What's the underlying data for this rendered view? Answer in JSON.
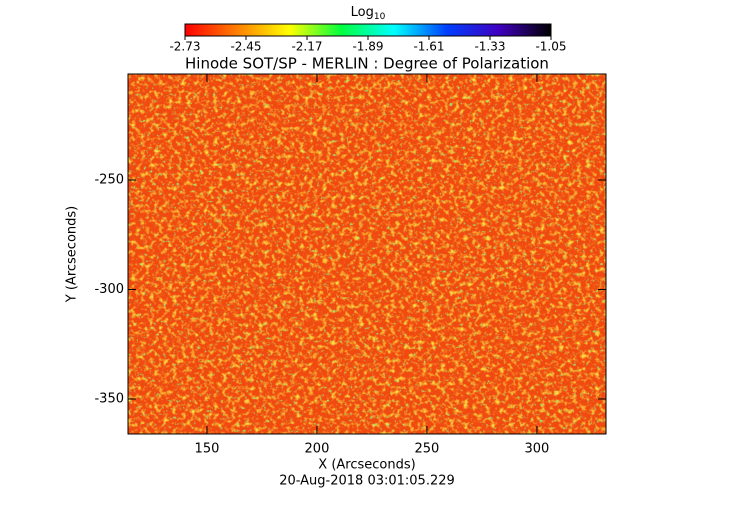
{
  "chart_data": {
    "type": "heatmap",
    "title": "Hinode SOT/SP - MERLIN : Degree of Polarization",
    "x_label": "X (Arcseconds)",
    "y_label": "Y (Arcseconds)",
    "footer": "20-Aug-2018 03:01:05.229",
    "colorbar_label": {
      "text": "Log",
      "subscript": "10"
    },
    "colormap": [
      "#ff0000",
      "#ff8000",
      "#ffff00",
      "#00ff40",
      "#00ffff",
      "#0040ff",
      "#4000c0",
      "#000000"
    ],
    "clim": [
      -2.73,
      -1.05
    ],
    "cticks": [
      -2.73,
      -2.45,
      -2.17,
      -1.89,
      -1.61,
      -1.33,
      -1.05
    ],
    "xlim": [
      114.1,
      331.4
    ],
    "xticks": [
      150,
      200,
      250,
      300
    ],
    "ylim": [
      -366,
      -201.6
    ],
    "yticks": [
      -250,
      -300,
      -350
    ]
  }
}
